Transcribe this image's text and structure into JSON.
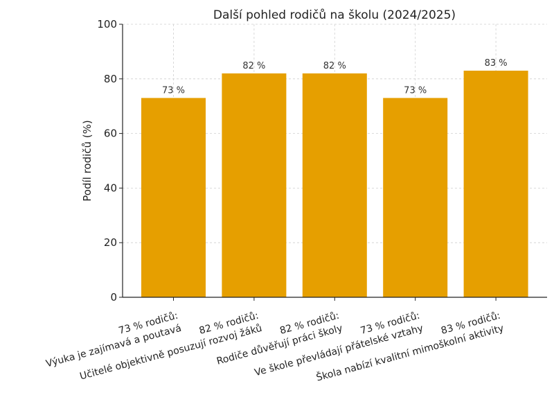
{
  "chart_data": {
    "type": "bar",
    "title": "Další pohled rodičů na školu (2024/2025)",
    "ylabel": "Podíl rodičů (%)",
    "xlabel": "",
    "ylim": [
      0,
      100
    ],
    "yticks": [
      "0",
      "20",
      "40",
      "60",
      "80",
      "100"
    ],
    "grid": true,
    "bar_color": "#e69f00",
    "categories": [
      [
        "73 % rodičů:",
        "Výuka je zajímavá a poutavá"
      ],
      [
        "82 % rodičů:",
        "Učitelé objektivně posuzují rozvoj žáků"
      ],
      [
        "82 % rodičů:",
        "Rodiče důvěřují práci školy"
      ],
      [
        "73 % rodičů:",
        "Ve škole převládají přátelské vztahy"
      ],
      [
        "83 % rodičů:",
        "Škola nabízí kvalitní mimoškolní aktivity"
      ]
    ],
    "values": [
      73,
      82,
      82,
      73,
      83
    ],
    "data_labels": [
      "73 %",
      "82 %",
      "82 %",
      "73 %",
      "83 %"
    ]
  }
}
